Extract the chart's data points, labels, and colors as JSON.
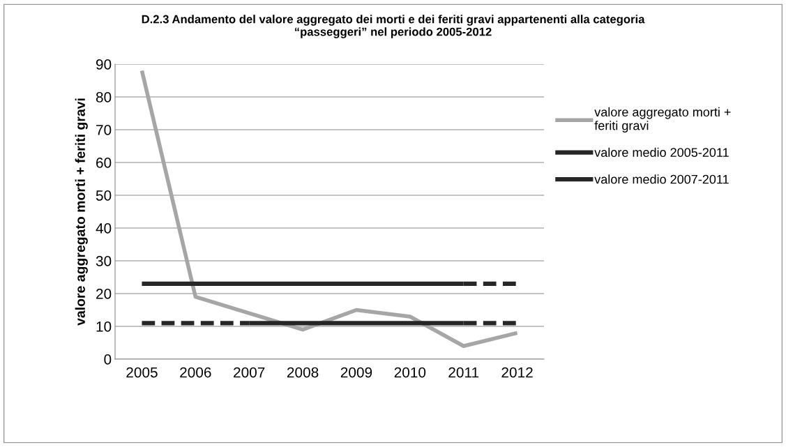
{
  "chart_data": {
    "type": "line",
    "title": "D.2.3 Andamento del valore aggregato dei morti e dei feriti gravi appartenenti alla categoria “passeggeri” nel periodo 2005-2012",
    "ylabel": "valore aggregato morti + feriti gravi",
    "categories": [
      "2005",
      "2006",
      "2007",
      "2008",
      "2009",
      "2010",
      "2011",
      "2012"
    ],
    "series": [
      {
        "name": "valore aggregato morti + feriti gravi",
        "color": "#a6a6a6",
        "values": [
          88,
          19,
          14,
          9,
          15,
          13,
          4,
          8
        ]
      },
      {
        "name": "valore medio 2005-2011",
        "color": "#262626",
        "line_style": "solid",
        "values": [
          23,
          23,
          23,
          23,
          23,
          23,
          23,
          null
        ]
      },
      {
        "color": "#262626",
        "line_style": "dashed",
        "values": [
          null,
          null,
          null,
          null,
          null,
          null,
          23,
          23
        ]
      },
      {
        "name": "valore medio 2007-2011",
        "color": "#262626",
        "line_style": "solid",
        "values": [
          null,
          null,
          11,
          11,
          11,
          11,
          11,
          null
        ]
      },
      {
        "color": "#262626",
        "line_style": "dashed",
        "values": [
          11,
          11,
          11,
          null,
          null,
          null,
          11,
          11
        ]
      }
    ],
    "ylim": [
      0,
      90
    ],
    "yticks": [
      0,
      10,
      20,
      30,
      40,
      50,
      60,
      70,
      80,
      90
    ],
    "grid": "y",
    "legend": "right",
    "marker": "none"
  }
}
